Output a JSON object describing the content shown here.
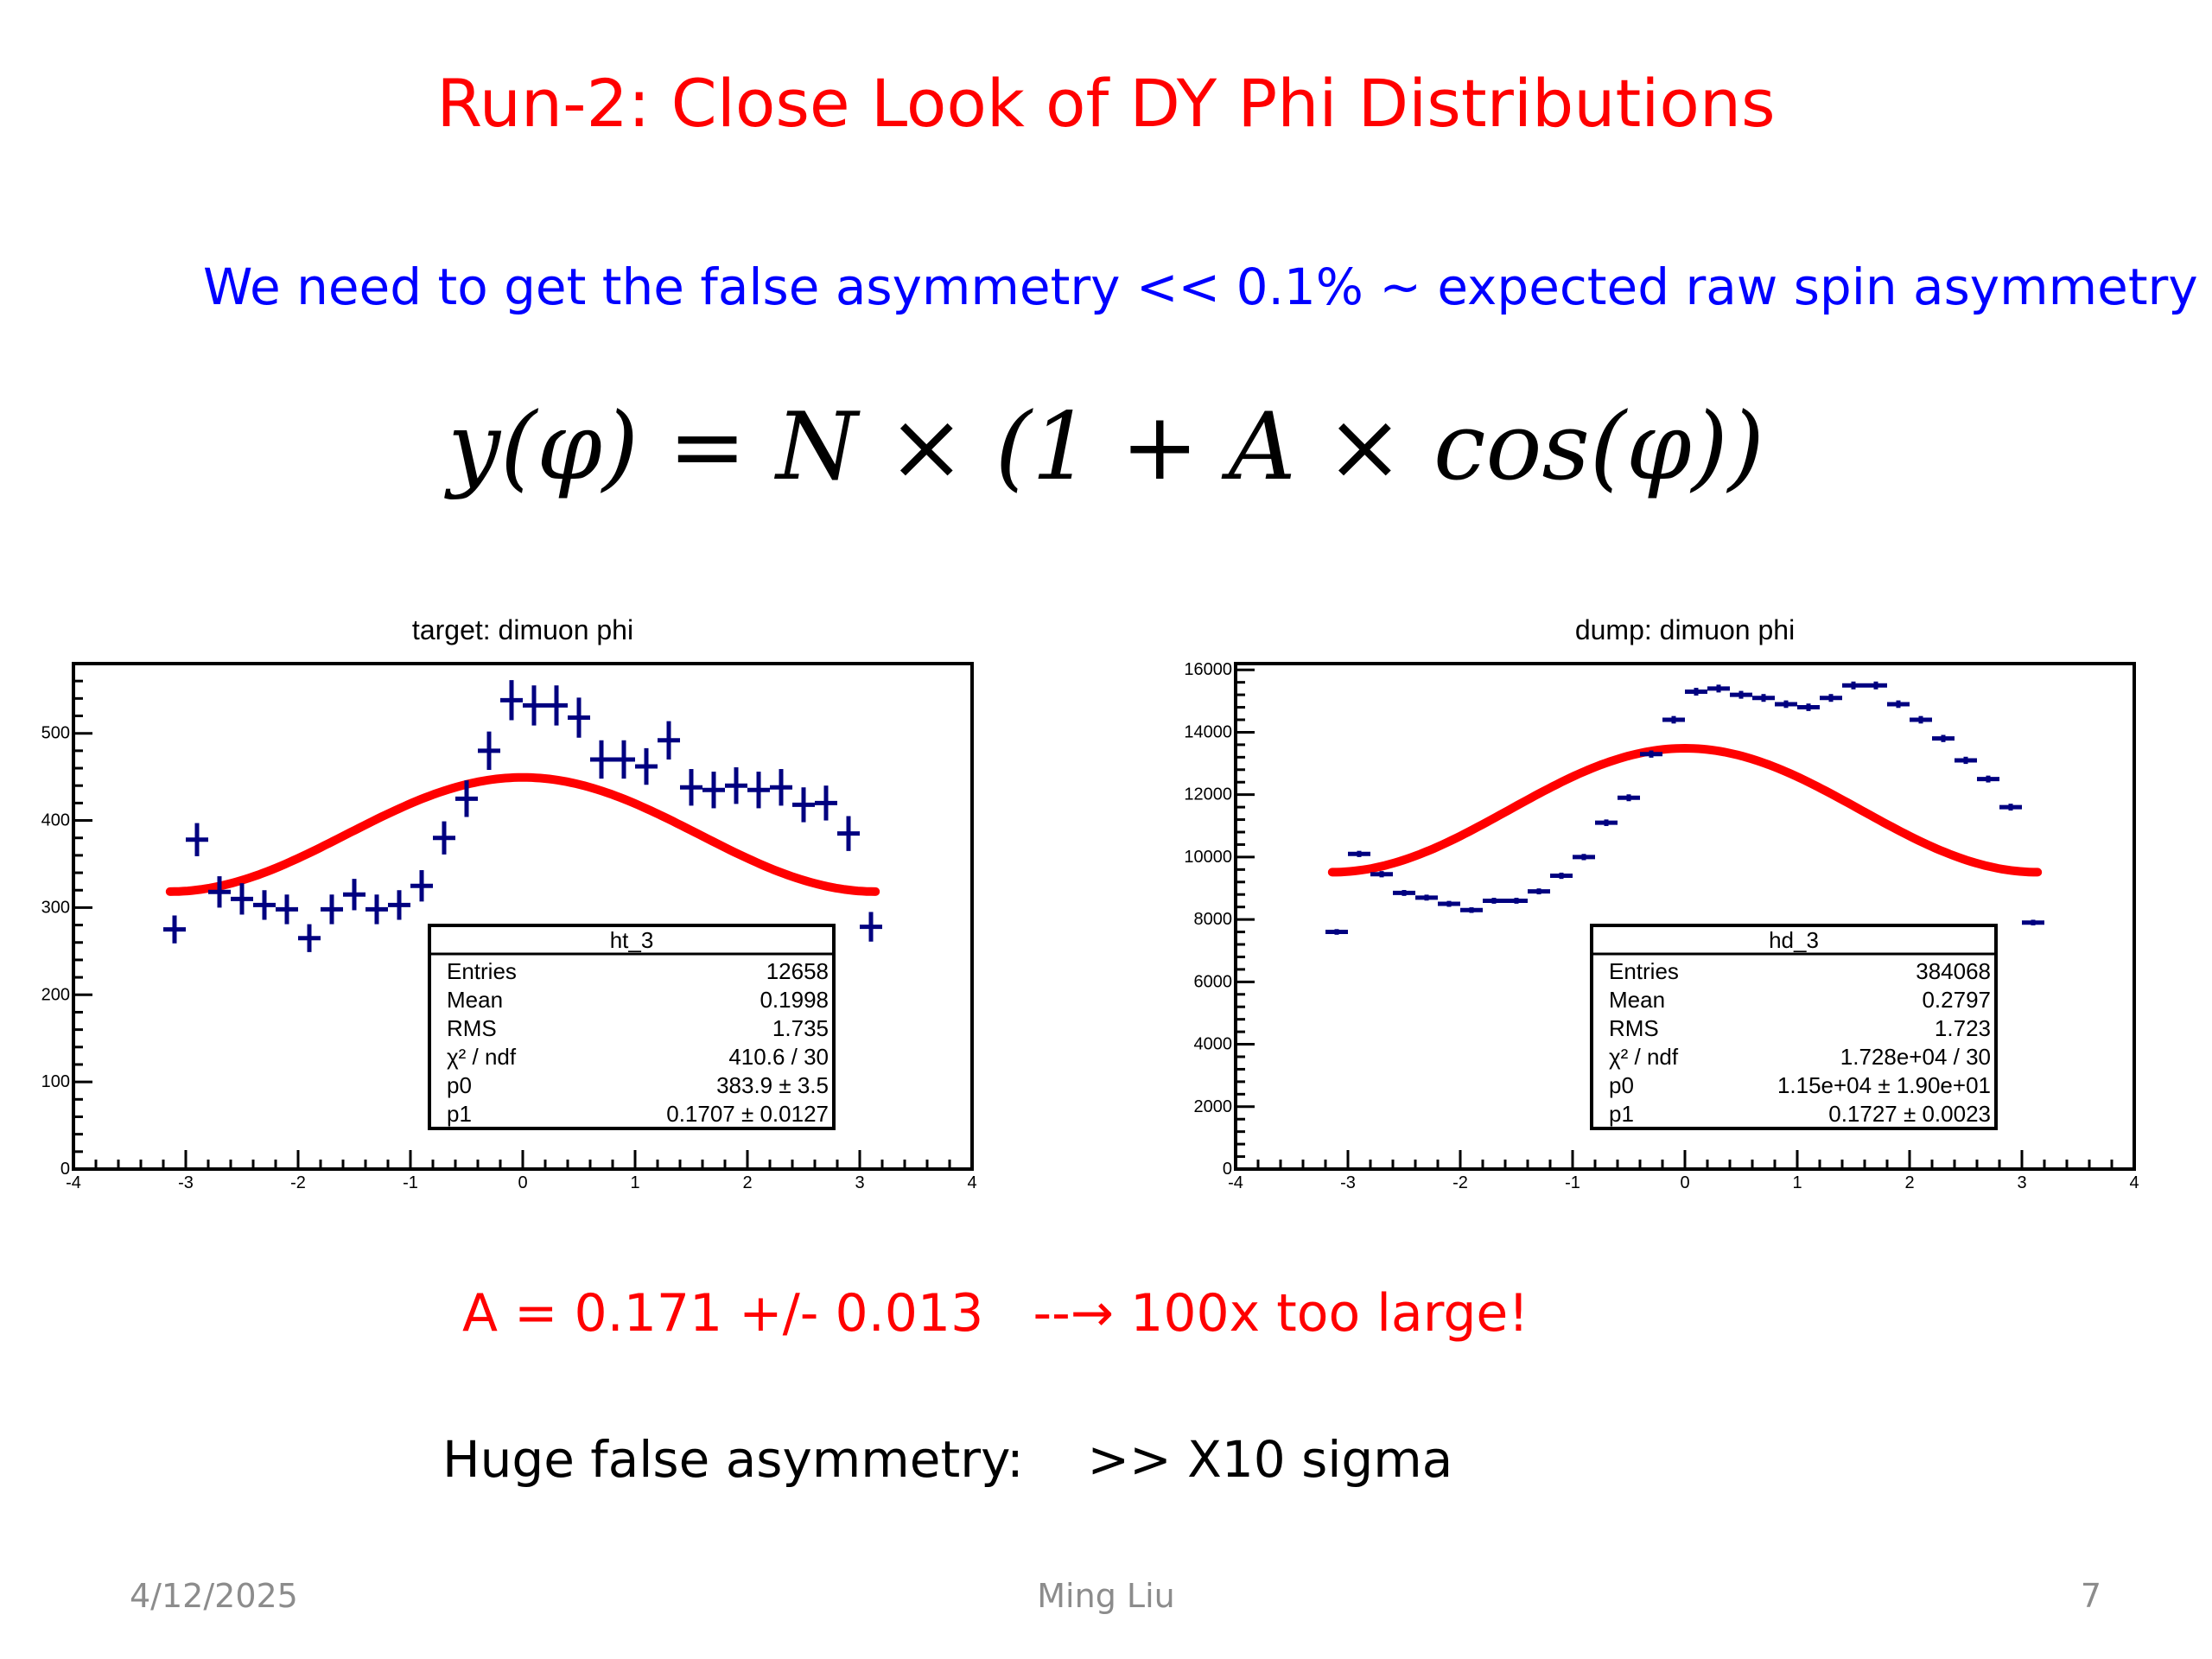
{
  "slide": {
    "title": "Run-2: Close Look of DY Phi Distributions",
    "subtitle": "We need to get the false asymmetry << 0.1% ~ expected raw spin asymmetry",
    "formula": {
      "lhs": "y(φ)",
      "eq": "=",
      "rhs": "N × (1 + A × cos(φ))"
    },
    "result": "A = 0.171 +/- 0.013   --→ 100x too large!",
    "note": "Huge false asymmetry:    >> X10 sigma",
    "footer": {
      "date": "4/12/2025",
      "author": "Ming Liu",
      "page": "7"
    }
  },
  "colors": {
    "title": "#ff0000",
    "subtitle": "#0000ff",
    "data": "#000080",
    "fit": "#ff0000"
  },
  "chart_data": [
    {
      "type": "scatter",
      "title": "target: dimuon phi",
      "xlim": [
        -4,
        4
      ],
      "ylim": [
        0,
        580
      ],
      "xticks": [
        "-4",
        "-3",
        "-2",
        "-1",
        "0",
        "1",
        "2",
        "3",
        "4"
      ],
      "yticks": [
        "0",
        "100",
        "200",
        "300",
        "400",
        "500"
      ],
      "xerr": 0.1,
      "points": [
        {
          "x": -3.1,
          "y": 275,
          "e": 16
        },
        {
          "x": -2.9,
          "y": 378,
          "e": 19
        },
        {
          "x": -2.7,
          "y": 318,
          "e": 18
        },
        {
          "x": -2.5,
          "y": 310,
          "e": 18
        },
        {
          "x": -2.3,
          "y": 303,
          "e": 17
        },
        {
          "x": -2.1,
          "y": 298,
          "e": 17
        },
        {
          "x": -1.9,
          "y": 265,
          "e": 16
        },
        {
          "x": -1.7,
          "y": 298,
          "e": 17
        },
        {
          "x": -1.5,
          "y": 315,
          "e": 18
        },
        {
          "x": -1.3,
          "y": 298,
          "e": 17
        },
        {
          "x": -1.1,
          "y": 303,
          "e": 17
        },
        {
          "x": -0.9,
          "y": 325,
          "e": 18
        },
        {
          "x": -0.7,
          "y": 380,
          "e": 19
        },
        {
          "x": -0.5,
          "y": 425,
          "e": 21
        },
        {
          "x": -0.3,
          "y": 480,
          "e": 22
        },
        {
          "x": -0.1,
          "y": 538,
          "e": 23
        },
        {
          "x": 0.1,
          "y": 532,
          "e": 23
        },
        {
          "x": 0.3,
          "y": 532,
          "e": 23
        },
        {
          "x": 0.5,
          "y": 518,
          "e": 23
        },
        {
          "x": 0.7,
          "y": 470,
          "e": 22
        },
        {
          "x": 0.9,
          "y": 470,
          "e": 22
        },
        {
          "x": 1.1,
          "y": 462,
          "e": 21
        },
        {
          "x": 1.3,
          "y": 492,
          "e": 22
        },
        {
          "x": 1.5,
          "y": 438,
          "e": 21
        },
        {
          "x": 1.7,
          "y": 435,
          "e": 21
        },
        {
          "x": 1.9,
          "y": 440,
          "e": 21
        },
        {
          "x": 2.1,
          "y": 435,
          "e": 21
        },
        {
          "x": 2.3,
          "y": 438,
          "e": 21
        },
        {
          "x": 2.5,
          "y": 418,
          "e": 20
        },
        {
          "x": 2.7,
          "y": 420,
          "e": 20
        },
        {
          "x": 2.9,
          "y": 385,
          "e": 20
        },
        {
          "x": 3.1,
          "y": 278,
          "e": 17
        }
      ],
      "fit": {
        "function": "p0*(1+p1*cos(x))",
        "p0": 383.9,
        "p1": 0.1707,
        "xrange": [
          -3.14,
          3.14
        ]
      },
      "stats": {
        "name": "ht_3",
        "rows": [
          {
            "label": "Entries",
            "value": "12658"
          },
          {
            "label": "Mean",
            "value": "0.1998"
          },
          {
            "label": "RMS",
            "value": "1.735"
          },
          {
            "label": "χ² / ndf",
            "value": "410.6 / 30"
          },
          {
            "label": "p0",
            "value": "383.9 ± 3.5"
          },
          {
            "label": "p1",
            "value": "0.1707 ± 0.0127"
          }
        ]
      }
    },
    {
      "type": "scatter",
      "title": "dump: dimuon phi",
      "xlim": [
        -4,
        4
      ],
      "ylim": [
        0,
        16200
      ],
      "xticks": [
        "-4",
        "-3",
        "-2",
        "-1",
        "0",
        "1",
        "2",
        "3",
        "4"
      ],
      "yticks": [
        "0",
        "2000",
        "4000",
        "6000",
        "8000",
        "10000",
        "12000",
        "14000",
        "16000"
      ],
      "xerr": 0.1,
      "points": [
        {
          "x": -3.1,
          "y": 7600,
          "e": 90
        },
        {
          "x": -2.9,
          "y": 10100,
          "e": 100
        },
        {
          "x": -2.7,
          "y": 9450,
          "e": 100
        },
        {
          "x": -2.5,
          "y": 8850,
          "e": 95
        },
        {
          "x": -2.3,
          "y": 8700,
          "e": 95
        },
        {
          "x": -2.1,
          "y": 8500,
          "e": 95
        },
        {
          "x": -1.9,
          "y": 8300,
          "e": 90
        },
        {
          "x": -1.7,
          "y": 8600,
          "e": 95
        },
        {
          "x": -1.5,
          "y": 8600,
          "e": 95
        },
        {
          "x": -1.3,
          "y": 8900,
          "e": 95
        },
        {
          "x": -1.1,
          "y": 9400,
          "e": 100
        },
        {
          "x": -0.9,
          "y": 10000,
          "e": 100
        },
        {
          "x": -0.7,
          "y": 11100,
          "e": 105
        },
        {
          "x": -0.5,
          "y": 11900,
          "e": 110
        },
        {
          "x": -0.3,
          "y": 13300,
          "e": 115
        },
        {
          "x": -0.1,
          "y": 14400,
          "e": 120
        },
        {
          "x": 0.1,
          "y": 15300,
          "e": 125
        },
        {
          "x": 0.3,
          "y": 15400,
          "e": 125
        },
        {
          "x": 0.5,
          "y": 15200,
          "e": 125
        },
        {
          "x": 0.7,
          "y": 15100,
          "e": 125
        },
        {
          "x": 0.9,
          "y": 14900,
          "e": 120
        },
        {
          "x": 1.1,
          "y": 14800,
          "e": 120
        },
        {
          "x": 1.3,
          "y": 15100,
          "e": 125
        },
        {
          "x": 1.5,
          "y": 15500,
          "e": 125
        },
        {
          "x": 1.7,
          "y": 15500,
          "e": 125
        },
        {
          "x": 1.9,
          "y": 14900,
          "e": 120
        },
        {
          "x": 2.1,
          "y": 14400,
          "e": 120
        },
        {
          "x": 2.3,
          "y": 13800,
          "e": 115
        },
        {
          "x": 2.5,
          "y": 13100,
          "e": 115
        },
        {
          "x": 2.7,
          "y": 12500,
          "e": 110
        },
        {
          "x": 2.9,
          "y": 11600,
          "e": 110
        },
        {
          "x": 3.1,
          "y": 7900,
          "e": 90
        }
      ],
      "fit": {
        "function": "p0*(1+p1*cos(x))",
        "p0": 11500,
        "p1": 0.1727,
        "xrange": [
          -3.14,
          3.14
        ]
      },
      "stats": {
        "name": "hd_3",
        "rows": [
          {
            "label": "Entries",
            "value": "384068"
          },
          {
            "label": "Mean",
            "value": "0.2797"
          },
          {
            "label": "RMS",
            "value": "1.723"
          },
          {
            "label": "χ² / ndf",
            "value": "1.728e+04 / 30"
          },
          {
            "label": "p0",
            "value": "1.15e+04 ± 1.90e+01"
          },
          {
            "label": "p1",
            "value": "0.1727 ± 0.0023"
          }
        ]
      }
    }
  ]
}
